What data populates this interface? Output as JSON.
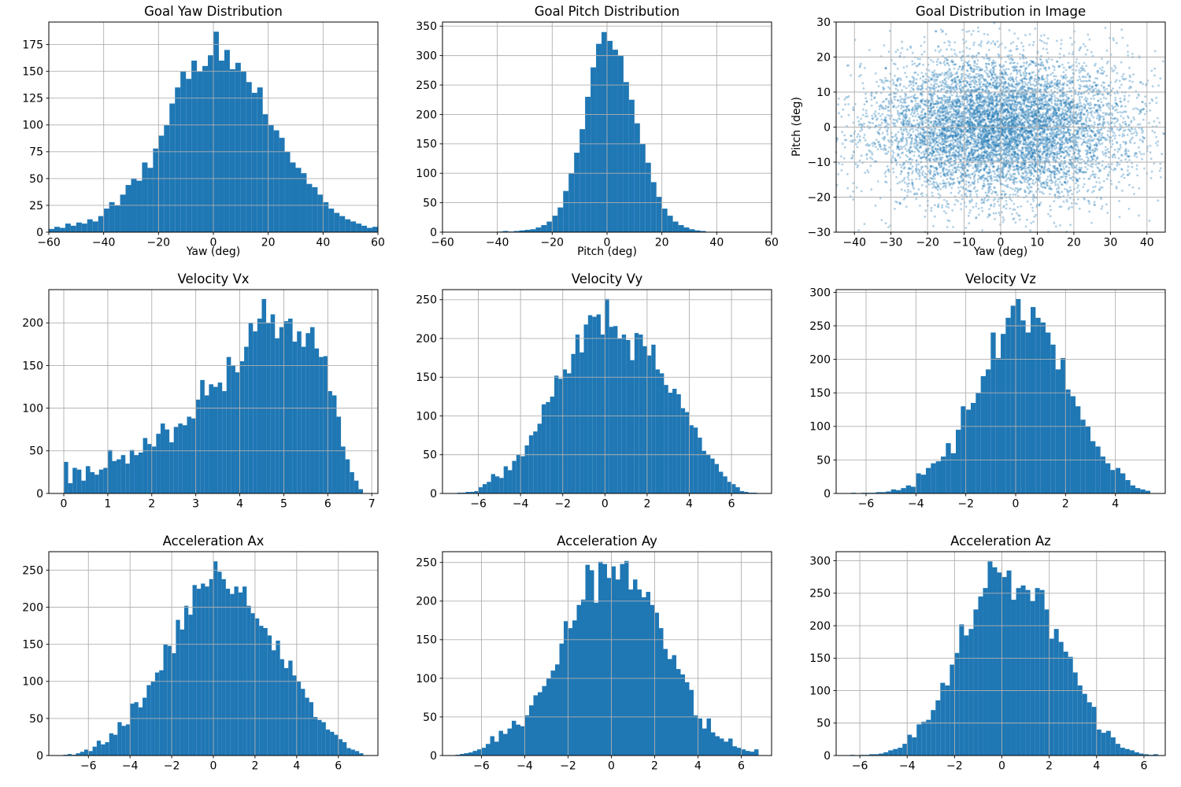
{
  "figure": {
    "background": "#ffffff",
    "bar_color": "#1f77b4",
    "grid_color": "#b0b0b0",
    "spine_color": "#000000",
    "scatter_color": "#1f77b4",
    "scatter_opacity": 0.35
  },
  "chart_data": [
    {
      "type": "bar",
      "title": "Goal Yaw Distribution",
      "xlabel": "Yaw (deg)",
      "ylabel": "",
      "xlim": [
        -60,
        60
      ],
      "ylim": [
        0,
        196
      ],
      "xticks": [
        -60,
        -40,
        -20,
        0,
        20,
        40,
        60
      ],
      "yticks": [
        0,
        25,
        50,
        75,
        100,
        125,
        150,
        175
      ],
      "bin_start": -60,
      "bin_width": 2,
      "counts": [
        3,
        5,
        4,
        8,
        6,
        9,
        8,
        12,
        10,
        15,
        22,
        28,
        25,
        35,
        44,
        50,
        48,
        65,
        60,
        78,
        90,
        100,
        120,
        135,
        150,
        143,
        160,
        150,
        155,
        165,
        187,
        160,
        170,
        152,
        158,
        150,
        140,
        130,
        135,
        110,
        100,
        95,
        88,
        75,
        65,
        60,
        55,
        45,
        42,
        35,
        28,
        22,
        18,
        15,
        12,
        10,
        8,
        6,
        4,
        5
      ]
    },
    {
      "type": "bar",
      "title": "Goal Pitch Distribution",
      "xlabel": "Pitch (deg)",
      "ylabel": "",
      "xlim": [
        -60,
        60
      ],
      "ylim": [
        0,
        357
      ],
      "xticks": [
        -60,
        -40,
        -20,
        0,
        20,
        40,
        60
      ],
      "yticks": [
        0,
        50,
        100,
        150,
        200,
        250,
        300,
        350
      ],
      "bin_start": -60,
      "bin_width": 2,
      "counts": [
        0,
        0,
        0,
        0,
        0,
        0,
        0,
        0,
        0,
        0,
        1,
        2,
        1,
        2,
        3,
        4,
        5,
        8,
        12,
        18,
        28,
        42,
        70,
        100,
        135,
        175,
        230,
        280,
        320,
        340,
        325,
        310,
        300,
        255,
        225,
        185,
        150,
        118,
        85,
        60,
        40,
        28,
        18,
        12,
        8,
        5,
        3,
        2,
        0,
        0,
        0,
        0,
        0,
        0,
        0,
        0,
        0,
        0,
        0,
        0
      ]
    },
    {
      "type": "scatter",
      "title": "Goal Distribution in Image",
      "xlabel": "Yaw (deg)",
      "ylabel": "Pitch (deg)",
      "xlim": [
        -45,
        45
      ],
      "ylim": [
        -30,
        30
      ],
      "xticks": [
        -40,
        -30,
        -20,
        -10,
        0,
        10,
        20,
        30,
        40
      ],
      "yticks": [
        -30,
        -20,
        -10,
        0,
        10,
        20,
        30
      ],
      "n_points": 8000,
      "x_mean": 0,
      "y_mean": 0,
      "x_std": 17.5,
      "y_std": 10.3,
      "marker_radius": 1.4,
      "seed": 42
    },
    {
      "type": "bar",
      "title": "Velocity Vx",
      "xlabel": "",
      "ylabel": "",
      "xlim": [
        -0.34,
        7.14
      ],
      "ylim": [
        0,
        239
      ],
      "xticks": [
        0,
        1,
        2,
        3,
        4,
        5,
        6,
        7
      ],
      "yticks": [
        0,
        50,
        100,
        150,
        200
      ],
      "bin_start": 0,
      "bin_width": 0.1,
      "counts": [
        37,
        12,
        30,
        28,
        15,
        32,
        25,
        22,
        28,
        30,
        51,
        38,
        40,
        45,
        35,
        51,
        45,
        48,
        65,
        58,
        55,
        70,
        82,
        75,
        60,
        78,
        82,
        80,
        90,
        88,
        110,
        133,
        115,
        128,
        125,
        130,
        120,
        160,
        150,
        142,
        155,
        172,
        200,
        190,
        205,
        228,
        200,
        210,
        182,
        195,
        202,
        205,
        178,
        190,
        172,
        188,
        195,
        170,
        160,
        161,
        120,
        115,
        90,
        55,
        40,
        25,
        15,
        5
      ]
    },
    {
      "type": "bar",
      "title": "Velocity Vy",
      "xlabel": "",
      "ylabel": "",
      "xlim": [
        -7.7,
        7.9
      ],
      "ylim": [
        0,
        263
      ],
      "xticks": [
        -6,
        -4,
        -2,
        0,
        2,
        4,
        6
      ],
      "yticks": [
        0,
        50,
        100,
        150,
        200,
        250
      ],
      "bin_start": -7.0,
      "bin_width": 0.2,
      "counts": [
        1,
        1,
        2,
        2,
        3,
        8,
        12,
        15,
        25,
        22,
        20,
        35,
        30,
        42,
        50,
        48,
        62,
        75,
        80,
        90,
        115,
        118,
        125,
        152,
        148,
        160,
        155,
        180,
        205,
        182,
        218,
        230,
        228,
        231,
        205,
        251,
        215,
        216,
        200,
        205,
        198,
        172,
        207,
        205,
        190,
        178,
        192,
        160,
        155,
        140,
        130,
        135,
        128,
        110,
        105,
        88,
        85,
        72,
        55,
        50,
        45,
        38,
        28,
        22,
        15,
        12,
        8,
        3,
        2,
        1,
        1
      ]
    },
    {
      "type": "bar",
      "title": "Velocity Vz",
      "xlabel": "",
      "ylabel": "",
      "xlim": [
        -7.2,
        6.0
      ],
      "ylim": [
        0,
        304
      ],
      "xticks": [
        -6,
        -4,
        -2,
        0,
        2,
        4
      ],
      "yticks": [
        0,
        50,
        100,
        150,
        200,
        250,
        300
      ],
      "bin_start": -6.6,
      "bin_width": 0.2,
      "counts": [
        1,
        0,
        1,
        1,
        1,
        2,
        2,
        3,
        6,
        5,
        8,
        12,
        10,
        30,
        28,
        38,
        45,
        48,
        55,
        75,
        60,
        95,
        130,
        125,
        135,
        150,
        175,
        185,
        240,
        202,
        238,
        262,
        280,
        290,
        258,
        240,
        278,
        262,
        255,
        240,
        222,
        185,
        202,
        155,
        145,
        130,
        110,
        100,
        78,
        70,
        55,
        45,
        35,
        38,
        30,
        20,
        12,
        8,
        6,
        4
      ]
    },
    {
      "type": "bar",
      "title": "Acceleration Ax",
      "xlabel": "",
      "ylabel": "",
      "xlim": [
        -7.9,
        7.9
      ],
      "ylim": [
        0,
        275
      ],
      "xticks": [
        -6,
        -4,
        -2,
        0,
        2,
        4,
        6
      ],
      "yticks": [
        0,
        50,
        100,
        150,
        200,
        250
      ],
      "bin_start": -7.2,
      "bin_width": 0.2,
      "counts": [
        1,
        2,
        1,
        3,
        5,
        8,
        6,
        12,
        20,
        15,
        18,
        30,
        28,
        45,
        40,
        42,
        70,
        72,
        65,
        78,
        95,
        100,
        112,
        115,
        150,
        148,
        138,
        183,
        170,
        202,
        190,
        230,
        225,
        232,
        228,
        238,
        262,
        248,
        238,
        225,
        218,
        228,
        220,
        228,
        202,
        192,
        185,
        175,
        172,
        162,
        142,
        155,
        130,
        118,
        128,
        108,
        100,
        90,
        78,
        72,
        52,
        48,
        45,
        35,
        32,
        28,
        22,
        18,
        10,
        8,
        6,
        3
      ]
    },
    {
      "type": "bar",
      "title": "Acceleration Ay",
      "xlabel": "",
      "ylabel": "",
      "xlim": [
        -7.8,
        7.4
      ],
      "ylim": [
        0,
        264
      ],
      "xticks": [
        -6,
        -4,
        -2,
        0,
        2,
        4,
        6
      ],
      "yticks": [
        0,
        50,
        100,
        150,
        200,
        250
      ],
      "bin_start": -7.2,
      "bin_width": 0.2,
      "counts": [
        1,
        2,
        3,
        4,
        6,
        8,
        10,
        15,
        25,
        18,
        32,
        28,
        35,
        45,
        40,
        38,
        52,
        65,
        78,
        82,
        90,
        100,
        110,
        118,
        145,
        174,
        165,
        175,
        195,
        202,
        247,
        240,
        198,
        251,
        248,
        230,
        245,
        228,
        248,
        252,
        215,
        228,
        215,
        205,
        212,
        195,
        185,
        165,
        138,
        125,
        130,
        112,
        105,
        95,
        85,
        52,
        48,
        35,
        48,
        30,
        25,
        22,
        18,
        22,
        12,
        10,
        8,
        6,
        5,
        8
      ]
    },
    {
      "type": "bar",
      "title": "Acceleration Az",
      "xlabel": "",
      "ylabel": "",
      "xlim": [
        -7.0,
        6.9
      ],
      "ylim": [
        0,
        314
      ],
      "xticks": [
        -6,
        -4,
        -2,
        0,
        2,
        4,
        6
      ],
      "yticks": [
        0,
        50,
        100,
        150,
        200,
        250,
        300
      ],
      "bin_start": -6.4,
      "bin_width": 0.2,
      "counts": [
        1,
        0,
        1,
        1,
        2,
        2,
        3,
        5,
        8,
        10,
        12,
        18,
        32,
        28,
        48,
        52,
        55,
        70,
        85,
        112,
        108,
        140,
        158,
        202,
        185,
        195,
        225,
        245,
        258,
        299,
        290,
        282,
        275,
        285,
        240,
        258,
        262,
        255,
        238,
        258,
        255,
        225,
        180,
        195,
        175,
        160,
        152,
        128,
        108,
        95,
        82,
        75,
        40,
        35,
        38,
        28,
        18,
        12,
        10,
        8,
        5,
        3,
        2,
        1,
        2
      ]
    }
  ]
}
